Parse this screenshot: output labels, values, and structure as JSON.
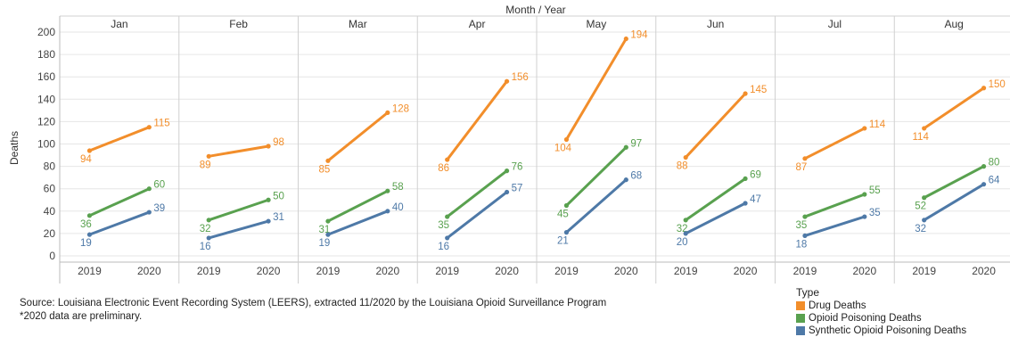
{
  "chart_data": {
    "type": "line",
    "column_header": "Month  /  Year",
    "ylabel": "Deaths",
    "ylim": [
      0,
      200
    ],
    "yticks": [
      0,
      20,
      40,
      60,
      80,
      100,
      120,
      140,
      160,
      180,
      200
    ],
    "x_categories": [
      "2019",
      "2020"
    ],
    "legend_position": "bottom-right",
    "legend_title": "Type",
    "grid": true,
    "panels": [
      {
        "month": "Jan",
        "series": {
          "drug": [
            94,
            115
          ],
          "opioid": [
            36,
            60
          ],
          "synthetic": [
            19,
            39
          ]
        }
      },
      {
        "month": "Feb",
        "series": {
          "drug": [
            89,
            98
          ],
          "opioid": [
            32,
            50
          ],
          "synthetic": [
            16,
            31
          ]
        }
      },
      {
        "month": "Mar",
        "series": {
          "drug": [
            85,
            128
          ],
          "opioid": [
            31,
            58
          ],
          "synthetic": [
            19,
            40
          ]
        }
      },
      {
        "month": "Apr",
        "series": {
          "drug": [
            86,
            156
          ],
          "opioid": [
            35,
            76
          ],
          "synthetic": [
            16,
            57
          ]
        }
      },
      {
        "month": "May",
        "series": {
          "drug": [
            104,
            194
          ],
          "opioid": [
            45,
            97
          ],
          "synthetic": [
            21,
            68
          ]
        }
      },
      {
        "month": "Jun",
        "series": {
          "drug": [
            88,
            145
          ],
          "opioid": [
            32,
            69
          ],
          "synthetic": [
            20,
            47
          ]
        }
      },
      {
        "month": "Jul",
        "series": {
          "drug": [
            87,
            114
          ],
          "opioid": [
            35,
            55
          ],
          "synthetic": [
            18,
            35
          ]
        }
      },
      {
        "month": "Aug",
        "series": {
          "drug": [
            114,
            150
          ],
          "opioid": [
            52,
            80
          ],
          "synthetic": [
            32,
            64
          ]
        }
      }
    ],
    "series_meta": [
      {
        "key": "drug",
        "name": "Drug Deaths",
        "color": "#f28e2b"
      },
      {
        "key": "opioid",
        "name": "Opioid Poisoning Deaths",
        "color": "#59a14f"
      },
      {
        "key": "synthetic",
        "name": "Synthetic Opioid Poisoning Deaths",
        "color": "#4e79a7"
      }
    ]
  },
  "footer": {
    "source": "Source: Louisiana Electronic Event Recording System (LEERS), extracted 11/2020 by the Louisiana Opioid Surveillance Program",
    "note": "*2020 data are preliminary."
  },
  "legend": {
    "title": "Type",
    "items": [
      {
        "label": "Drug Deaths",
        "color": "#f28e2b"
      },
      {
        "label": "Opioid Poisoning Deaths",
        "color": "#59a14f"
      },
      {
        "label": "Synthetic Opioid Poisoning Deaths",
        "color": "#4e79a7"
      }
    ]
  }
}
